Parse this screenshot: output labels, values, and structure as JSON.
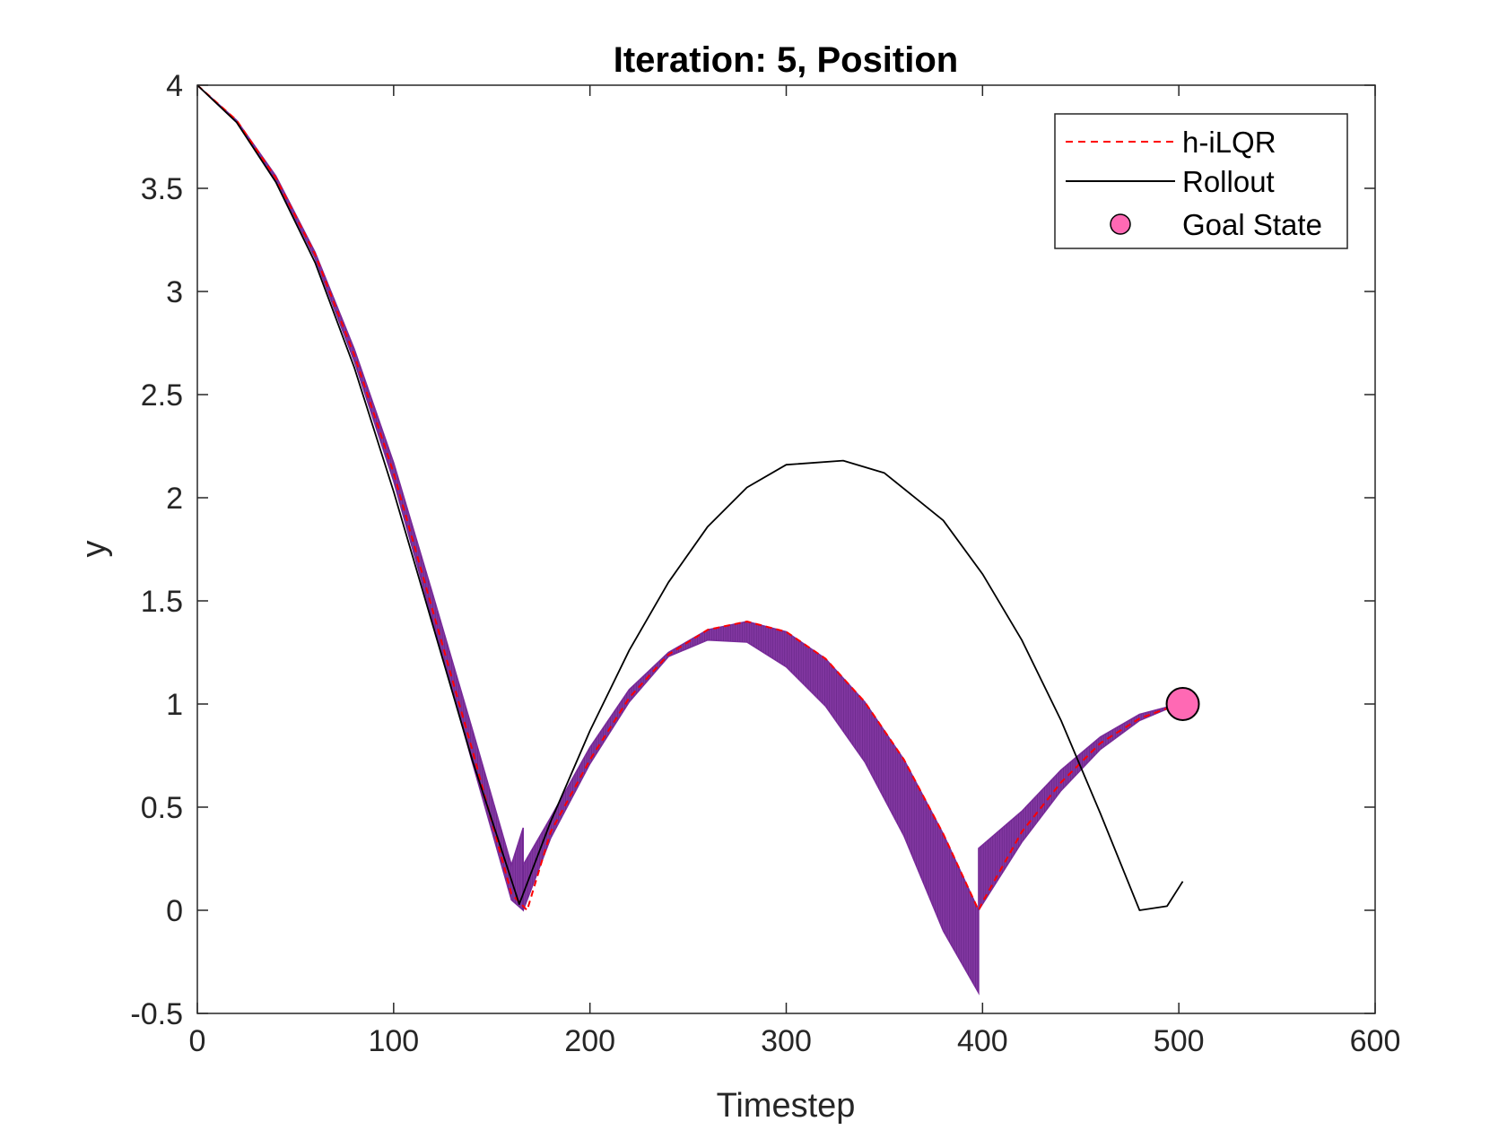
{
  "chart_data": {
    "type": "line",
    "title": "Iteration: 5, Position",
    "xlabel": "Timestep",
    "ylabel": "y",
    "xlim": [
      0,
      600
    ],
    "ylim": [
      -0.5,
      4
    ],
    "xticks": [
      0,
      100,
      200,
      300,
      400,
      500,
      600
    ],
    "xtick_labels": [
      "0",
      "100",
      "200",
      "300",
      "400",
      "500",
      "600"
    ],
    "yticks": [
      -0.5,
      0,
      0.5,
      1,
      1.5,
      2,
      2.5,
      3,
      3.5,
      4
    ],
    "ytick_labels": [
      "-0.5",
      "0",
      "0.5",
      "1",
      "1.5",
      "2",
      "2.5",
      "3",
      "3.5",
      "4"
    ],
    "grid": false,
    "legend_position": "top-right",
    "series": [
      {
        "name": "h-iLQR",
        "style": "dashed",
        "color": "#ff0000",
        "x": [
          0,
          20,
          40,
          60,
          80,
          100,
          120,
          140,
          160,
          168,
          180,
          200,
          220,
          240,
          260,
          280,
          300,
          320,
          340,
          360,
          380,
          398,
          400,
          420,
          440,
          460,
          480,
          500,
          502
        ],
        "y": [
          4.0,
          3.83,
          3.55,
          3.18,
          2.69,
          2.12,
          1.45,
          0.78,
          0.08,
          0.0,
          0.38,
          0.73,
          1.03,
          1.24,
          1.36,
          1.4,
          1.35,
          1.22,
          1.01,
          0.73,
          0.37,
          0.0,
          0.04,
          0.38,
          0.62,
          0.81,
          0.93,
          1.0,
          1.0
        ]
      },
      {
        "name": "Rollout",
        "style": "solid",
        "color": "#000000",
        "x": [
          0,
          20,
          40,
          60,
          80,
          100,
          120,
          140,
          164,
          180,
          200,
          220,
          240,
          260,
          280,
          300,
          329,
          350,
          380,
          400,
          420,
          440,
          460,
          480,
          494,
          502
        ],
        "y": [
          4.0,
          3.82,
          3.53,
          3.14,
          2.63,
          2.03,
          1.38,
          0.73,
          0.03,
          0.43,
          0.87,
          1.26,
          1.59,
          1.86,
          2.05,
          2.16,
          2.18,
          2.12,
          1.89,
          1.63,
          1.31,
          0.92,
          0.47,
          0.0,
          0.02,
          0.14
        ]
      },
      {
        "name": "Goal State",
        "style": "marker",
        "color": "#ff69b4",
        "x": [
          502
        ],
        "y": [
          1.0
        ]
      }
    ],
    "band": {
      "color": "#7b2c9c",
      "segments": [
        {
          "x": [
            0,
            20,
            40,
            60,
            80,
            100,
            120,
            140,
            160,
            166
          ],
          "upper": [
            4.0,
            3.83,
            3.56,
            3.19,
            2.72,
            2.17,
            1.53,
            0.88,
            0.22,
            0.4
          ],
          "lower": [
            4.0,
            3.82,
            3.54,
            3.16,
            2.66,
            2.08,
            1.4,
            0.72,
            0.05,
            0.0
          ]
        },
        {
          "x": [
            166,
            180,
            200,
            220,
            240,
            260,
            280,
            300,
            320,
            340,
            360,
            380,
            398
          ],
          "upper": [
            0.22,
            0.45,
            0.79,
            1.07,
            1.25,
            1.36,
            1.4,
            1.35,
            1.22,
            1.01,
            0.73,
            0.37,
            0.0
          ],
          "lower": [
            0.0,
            0.35,
            0.71,
            1.01,
            1.23,
            1.31,
            1.3,
            1.18,
            0.99,
            0.72,
            0.36,
            -0.1,
            -0.4
          ]
        },
        {
          "x": [
            398,
            420,
            440,
            460,
            480,
            500
          ],
          "upper": [
            0.3,
            0.48,
            0.68,
            0.84,
            0.95,
            1.0
          ],
          "lower": [
            0.0,
            0.33,
            0.58,
            0.78,
            0.92,
            1.0
          ]
        }
      ]
    },
    "legend": {
      "entries": [
        "h-iLQR",
        "Rollout",
        "Goal State"
      ]
    }
  }
}
